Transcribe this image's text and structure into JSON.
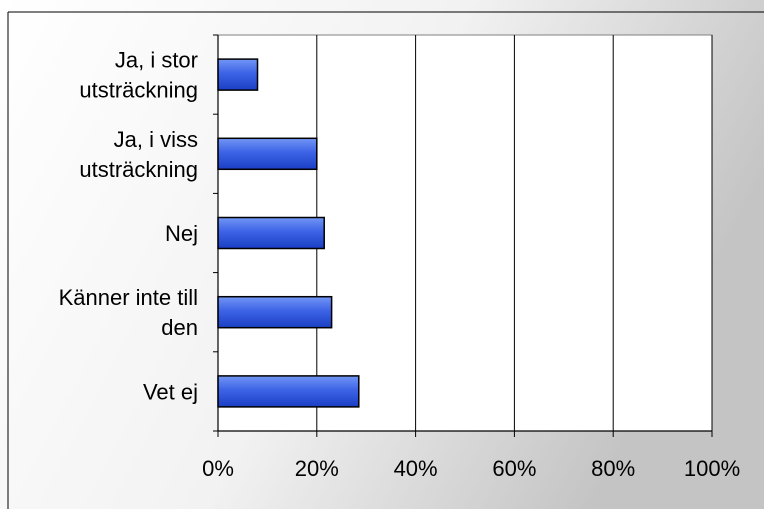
{
  "chart_data": {
    "type": "bar",
    "orientation": "horizontal",
    "categories": [
      [
        "Ja, i stor",
        "utsträckning"
      ],
      [
        "Ja, i viss",
        "utsträckning"
      ],
      [
        "Nej"
      ],
      [
        "Känner inte till",
        "den"
      ],
      [
        "Vet ej"
      ]
    ],
    "values": [
      8,
      20,
      21.5,
      23,
      28.5
    ],
    "xlim": [
      0,
      100
    ],
    "x_ticks": [
      "0%",
      "20%",
      "40%",
      "60%",
      "80%",
      "100%"
    ],
    "x_tick_values": [
      0,
      20,
      40,
      60,
      80,
      100
    ],
    "gridlines": "vertical",
    "legend": "none",
    "title": "",
    "xlabel": "",
    "ylabel": "",
    "colors": {
      "bar_fill_light": "#5b82f0",
      "bar_fill_dark": "#1a3fc4",
      "bar_stroke": "#000000",
      "background_light": "#ffffff",
      "background_dark": "#c8c8c8",
      "plot_area": "#ffffff",
      "axis": "#000000"
    }
  }
}
